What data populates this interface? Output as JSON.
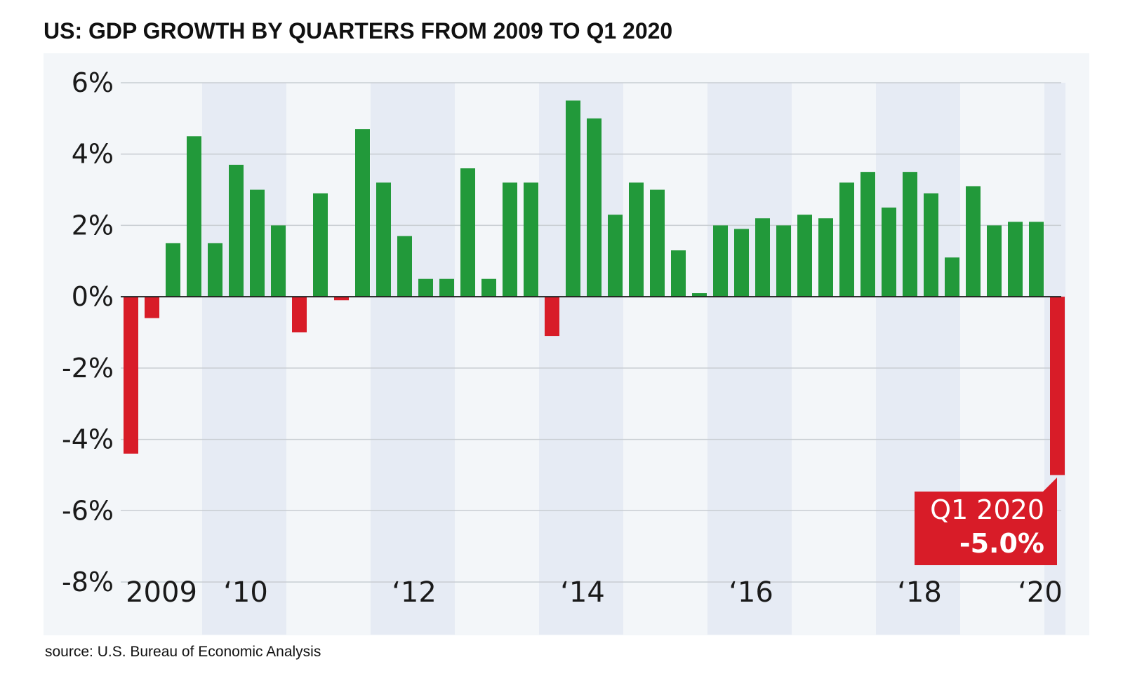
{
  "title": "US: GDP GROWTH BY QUARTERS FROM 2009 TO Q1 2020",
  "source": "source: U.S. Bureau of Economic Analysis",
  "colors": {
    "positive": "#22993a",
    "negative": "#d81c28",
    "panel": "#f3f6f9",
    "band": "#e6ebf4",
    "grid": "#c8cdd2",
    "zero_line": "#222222"
  },
  "callout": {
    "line1": "Q1 2020",
    "line2": "-5.0%"
  },
  "chart_data": {
    "type": "bar",
    "title": "US: GDP GROWTH BY QUARTERS FROM 2009 TO Q1 2020",
    "xlabel": "",
    "ylabel": "",
    "ylim": [
      -8,
      6
    ],
    "y_ticks": [
      6,
      4,
      2,
      0,
      -2,
      -4,
      -6,
      -8
    ],
    "y_tick_labels": [
      "6%",
      "4%",
      "2%",
      "0%",
      "-2%",
      "-4%",
      "-6%",
      "-8%"
    ],
    "year_labels": [
      "2009",
      "‘10",
      "‘12",
      "‘14",
      "‘16",
      "‘18",
      "‘20"
    ],
    "shaded_years": [
      "2010",
      "2012",
      "2014",
      "2016",
      "2018",
      "2020"
    ],
    "categories": [
      "Q1 2009",
      "Q2 2009",
      "Q3 2009",
      "Q4 2009",
      "Q1 2010",
      "Q2 2010",
      "Q3 2010",
      "Q4 2010",
      "Q1 2011",
      "Q2 2011",
      "Q3 2011",
      "Q4 2011",
      "Q1 2012",
      "Q2 2012",
      "Q3 2012",
      "Q4 2012",
      "Q1 2013",
      "Q2 2013",
      "Q3 2013",
      "Q4 2013",
      "Q1 2014",
      "Q2 2014",
      "Q3 2014",
      "Q4 2014",
      "Q1 2015",
      "Q2 2015",
      "Q3 2015",
      "Q4 2015",
      "Q1 2016",
      "Q2 2016",
      "Q3 2016",
      "Q4 2016",
      "Q1 2017",
      "Q2 2017",
      "Q3 2017",
      "Q4 2017",
      "Q1 2018",
      "Q2 2018",
      "Q3 2018",
      "Q4 2018",
      "Q1 2019",
      "Q2 2019",
      "Q3 2019",
      "Q4 2019",
      "Q1 2020"
    ],
    "values": [
      -4.4,
      -0.6,
      1.5,
      4.5,
      1.5,
      3.7,
      3.0,
      2.0,
      -1.0,
      2.9,
      -0.1,
      4.7,
      3.2,
      1.7,
      0.5,
      0.5,
      3.6,
      0.5,
      3.2,
      3.2,
      -1.1,
      5.5,
      5.0,
      2.3,
      3.2,
      3.0,
      1.3,
      0.1,
      2.0,
      1.9,
      2.2,
      2.0,
      2.3,
      2.2,
      3.2,
      3.5,
      2.5,
      3.5,
      2.9,
      1.1,
      3.1,
      2.0,
      2.1,
      2.1,
      -5.0
    ]
  }
}
